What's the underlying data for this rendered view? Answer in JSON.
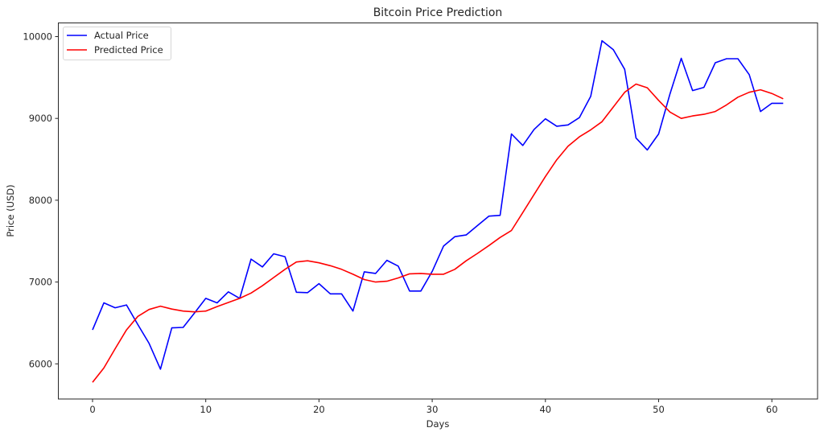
{
  "chart_data": {
    "type": "line",
    "title": "Bitcoin Price Prediction",
    "xlabel": "Days",
    "ylabel": "Price (USD)",
    "xlim": [
      -3,
      63.5
    ],
    "ylim": [
      5570,
      10160
    ],
    "x_ticks": [
      0,
      10,
      20,
      30,
      40,
      50,
      60
    ],
    "y_ticks": [
      6000,
      7000,
      8000,
      9000,
      10000
    ],
    "grid": false,
    "legend_position": "upper left",
    "x": [
      0,
      1,
      2,
      3,
      4,
      5,
      6,
      7,
      8,
      9,
      10,
      11,
      12,
      13,
      14,
      15,
      16,
      17,
      18,
      19,
      20,
      21,
      22,
      23,
      24,
      25,
      26,
      27,
      28,
      29,
      30,
      31,
      32,
      33,
      34,
      35,
      36,
      37,
      38,
      39,
      40,
      41,
      42,
      43,
      44,
      45,
      46,
      47,
      48,
      49,
      50,
      51,
      52,
      53,
      54,
      55,
      56,
      57,
      58,
      59,
      60,
      61
    ],
    "series": [
      {
        "name": "Actual Price",
        "color": "#0000ff",
        "values": [
          6415,
          6745,
          6685,
          6720,
          6480,
          6250,
          5935,
          6440,
          6445,
          6620,
          6800,
          6745,
          6880,
          6800,
          7280,
          7185,
          7345,
          7310,
          6875,
          6870,
          6980,
          6855,
          6855,
          6645,
          7125,
          7105,
          7265,
          7195,
          6890,
          6890,
          7130,
          7440,
          7555,
          7575,
          7690,
          7805,
          7815,
          8810,
          8670,
          8865,
          8995,
          8905,
          8920,
          9010,
          9270,
          9950,
          9840,
          9600,
          8760,
          8615,
          8810,
          9300,
          9735,
          9340,
          9380,
          9680,
          9730,
          9730,
          9535,
          9085,
          9185,
          9185
        ]
      },
      {
        "name": "Predicted Price",
        "color": "#ff0000",
        "values": [
          5775,
          5950,
          6185,
          6415,
          6580,
          6665,
          6705,
          6670,
          6645,
          6635,
          6645,
          6700,
          6750,
          6800,
          6865,
          6955,
          7055,
          7155,
          7245,
          7260,
          7235,
          7200,
          7155,
          7095,
          7030,
          7000,
          7010,
          7050,
          7100,
          7105,
          7095,
          7095,
          7155,
          7260,
          7350,
          7445,
          7545,
          7630,
          7850,
          8070,
          8290,
          8495,
          8660,
          8775,
          8860,
          8960,
          9140,
          9320,
          9420,
          9375,
          9220,
          9078,
          9000,
          9030,
          9050,
          9085,
          9165,
          9260,
          9320,
          9350,
          9305,
          9240
        ]
      }
    ]
  },
  "legend": {
    "items": [
      {
        "label": "Actual Price",
        "color": "#0000ff"
      },
      {
        "label": "Predicted Price",
        "color": "#ff0000"
      }
    ]
  }
}
